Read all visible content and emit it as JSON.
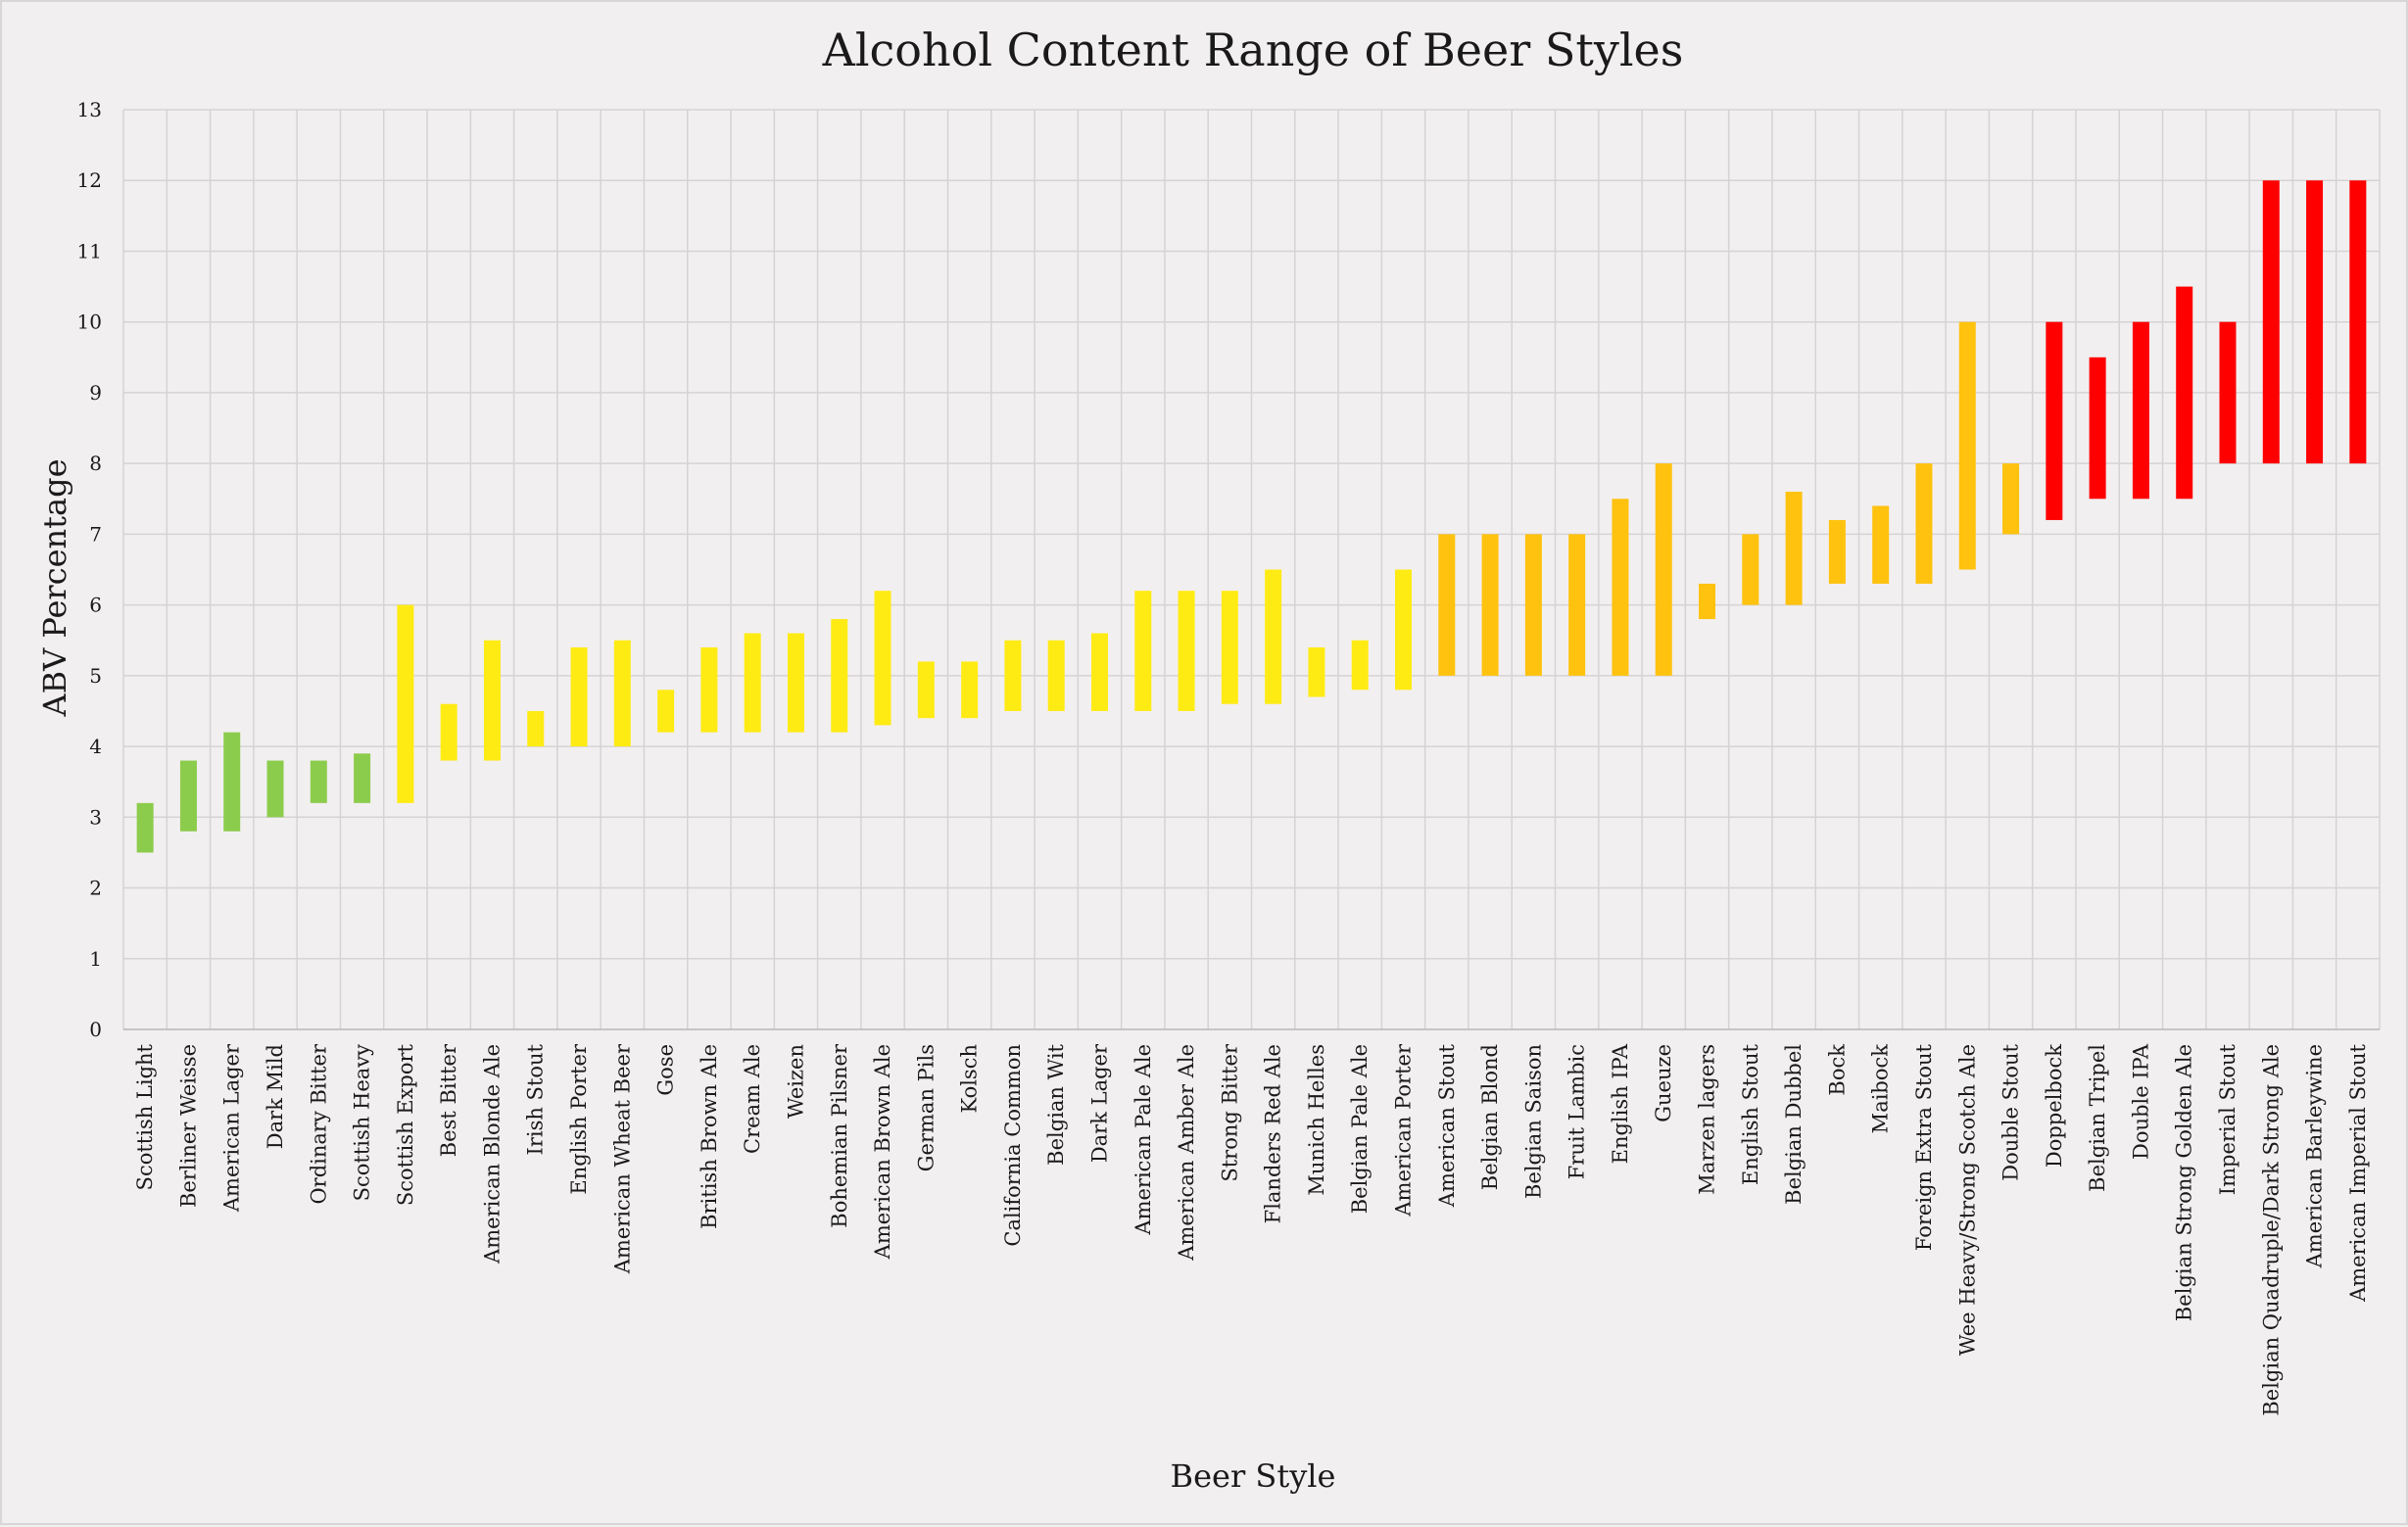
{
  "chart_data": {
    "type": "bar",
    "subtype": "floating-range",
    "title": "Alcohol Content Range of Beer Styles",
    "xlabel": "Beer Style",
    "ylabel": "ABV Percentage",
    "ylim": [
      0,
      13
    ],
    "yticks": [
      0,
      1,
      2,
      3,
      4,
      5,
      6,
      7,
      8,
      9,
      10,
      11,
      12,
      13
    ],
    "grid": true,
    "legend": "none",
    "colors": {
      "green": "#8ccc4c",
      "yellow": "#ffeb14",
      "amber": "#ffc20e",
      "red": "#ff0000"
    },
    "categories": [
      "Scottish Light",
      "Berliner Weisse",
      "American Lager",
      "Dark Mild",
      "Ordinary Bitter",
      "Scottish Heavy",
      "Scottish Export",
      "Best Bitter",
      "American Blonde Ale",
      "Irish Stout",
      "English Porter",
      "American Wheat Beer",
      "Gose",
      "British Brown Ale",
      "Cream Ale",
      "Weizen",
      "Bohemian Pilsner",
      "American Brown Ale",
      "German Pils",
      "Kolsch",
      "California Common",
      "Belgian Wit",
      "Dark Lager",
      "American Pale Ale",
      "American Amber Ale",
      "Strong Bitter",
      "Flanders Red Ale",
      "Munich Helles",
      "Belgian Pale Ale",
      "American Porter",
      "American Stout",
      "Belgian Blond",
      "Belgian Saison",
      "Fruit Lambic",
      "English IPA",
      "Gueuze",
      "Marzen lagers",
      "English Stout",
      "Belgian Dubbel",
      "Bock",
      "Maibock",
      "Foreign Extra Stout",
      "Wee Heavy/Strong Scotch Ale",
      "Double Stout",
      "Doppelbock",
      "Belgian Tripel",
      "Double IPA",
      "Belgian Strong Golden Ale",
      "Imperial Stout",
      "Belgian Quadruple/Dark Strong Ale",
      "American Barleywine",
      "American Imperial Stout"
    ],
    "min_abv": [
      2.5,
      2.8,
      2.8,
      3.0,
      3.2,
      3.2,
      3.2,
      3.8,
      3.8,
      4.0,
      4.0,
      4.0,
      4.2,
      4.2,
      4.2,
      4.2,
      4.2,
      4.3,
      4.4,
      4.4,
      4.5,
      4.5,
      4.5,
      4.5,
      4.5,
      4.6,
      4.6,
      4.7,
      4.8,
      4.8,
      5.0,
      5.0,
      5.0,
      5.0,
      5.0,
      5.0,
      5.8,
      6.0,
      6.0,
      6.3,
      6.3,
      6.3,
      6.5,
      7.0,
      7.2,
      7.5,
      7.5,
      7.5,
      8.0,
      8.0,
      8.0,
      8.0
    ],
    "max_abv": [
      3.2,
      3.8,
      4.2,
      3.8,
      3.8,
      3.9,
      6.0,
      4.6,
      5.5,
      4.5,
      5.4,
      5.5,
      4.8,
      5.4,
      5.6,
      5.6,
      5.8,
      6.2,
      5.2,
      5.2,
      5.5,
      5.5,
      5.6,
      6.2,
      6.2,
      6.2,
      6.5,
      5.4,
      5.5,
      6.5,
      7.0,
      7.0,
      7.0,
      7.0,
      7.5,
      8.0,
      6.3,
      7.0,
      7.6,
      7.2,
      7.4,
      8.0,
      10.0,
      8.0,
      10.0,
      9.5,
      10.0,
      10.5,
      10.0,
      12.0,
      12.0,
      12.0
    ],
    "bar_colors": [
      "#8ccc4c",
      "#8ccc4c",
      "#8ccc4c",
      "#8ccc4c",
      "#8ccc4c",
      "#8ccc4c",
      "#ffeb14",
      "#ffeb14",
      "#ffeb14",
      "#ffeb14",
      "#ffeb14",
      "#ffeb14",
      "#ffeb14",
      "#ffeb14",
      "#ffeb14",
      "#ffeb14",
      "#ffeb14",
      "#ffeb14",
      "#ffeb14",
      "#ffeb14",
      "#ffeb14",
      "#ffeb14",
      "#ffeb14",
      "#ffeb14",
      "#ffeb14",
      "#ffeb14",
      "#ffeb14",
      "#ffeb14",
      "#ffeb14",
      "#ffeb14",
      "#ffc20e",
      "#ffc20e",
      "#ffc20e",
      "#ffc20e",
      "#ffc20e",
      "#ffc20e",
      "#ffc20e",
      "#ffc20e",
      "#ffc20e",
      "#ffc20e",
      "#ffc20e",
      "#ffc20e",
      "#ffc20e",
      "#ffc20e",
      "#ff0000",
      "#ff0000",
      "#ff0000",
      "#ff0000",
      "#ff0000",
      "#ff0000",
      "#ff0000",
      "#ff0000"
    ]
  }
}
